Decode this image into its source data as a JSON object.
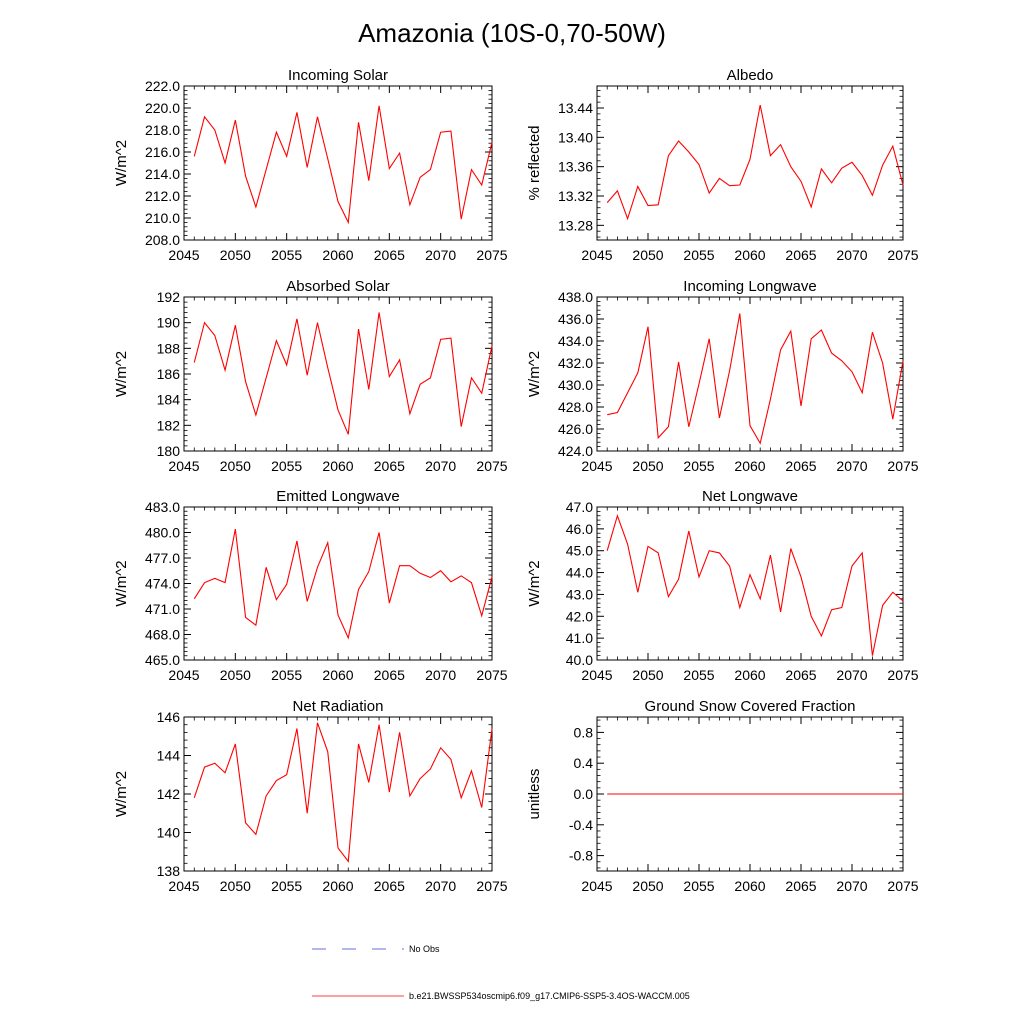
{
  "figure": {
    "title": "Amazonia (10S-0,70-50W)",
    "legend": [
      {
        "label": "No Obs",
        "color": "#3344cc",
        "style": "dashed"
      },
      {
        "label": "b.e21.BWSSP534oscmip6.f09_g17.CMIP6-SSP5-3.4OS-WACCM.005",
        "color": "#ff0000",
        "style": "solid"
      }
    ]
  },
  "chart_data": [
    {
      "id": "incoming-solar",
      "type": "line",
      "title": "Incoming Solar",
      "ylabel": "W/m^2",
      "xlim": [
        2045,
        2075
      ],
      "ylim": [
        208,
        222
      ],
      "xticks": [
        2045,
        2050,
        2055,
        2060,
        2065,
        2070,
        2075
      ],
      "xtick_labels": [
        "2045",
        "2050",
        "2055",
        "2060",
        "2065",
        "2070",
        "2075"
      ],
      "yticks": [
        208,
        210,
        212,
        214,
        216,
        218,
        220,
        222
      ],
      "ytick_labels": [
        "208.0",
        "210.0",
        "212.0",
        "214.0",
        "216.0",
        "218.0",
        "220.0",
        "222.0"
      ],
      "yminor": 4,
      "color": "#ff0000",
      "x": [
        2046,
        2047,
        2048,
        2049,
        2050,
        2051,
        2052,
        2053,
        2054,
        2055,
        2056,
        2057,
        2058,
        2059,
        2060,
        2061,
        2062,
        2063,
        2064,
        2065,
        2066,
        2067,
        2068,
        2069,
        2070,
        2071,
        2072,
        2073,
        2074,
        2075
      ],
      "values": [
        215.6,
        219.2,
        218.0,
        215.0,
        218.9,
        213.8,
        211.0,
        214.4,
        217.8,
        215.6,
        219.6,
        214.6,
        219.2,
        215.4,
        211.5,
        209.6,
        218.7,
        213.4,
        220.2,
        214.5,
        215.9,
        211.2,
        213.7,
        214.4,
        217.8,
        217.9,
        209.9,
        214.4,
        213.0,
        216.9
      ]
    },
    {
      "id": "albedo",
      "type": "line",
      "title": "Albedo",
      "ylabel": "% reflected",
      "xlim": [
        2045,
        2075
      ],
      "ylim": [
        13.26,
        13.47
      ],
      "xticks": [
        2045,
        2050,
        2055,
        2060,
        2065,
        2070,
        2075
      ],
      "xtick_labels": [
        "2045",
        "2050",
        "2055",
        "2060",
        "2065",
        "2070",
        "2075"
      ],
      "yticks": [
        13.28,
        13.32,
        13.36,
        13.4,
        13.44
      ],
      "ytick_labels": [
        "13.28",
        "13.32",
        "13.36",
        "13.40",
        "13.44"
      ],
      "yminor": 4,
      "color": "#ff0000",
      "x": [
        2046,
        2047,
        2048,
        2049,
        2050,
        2051,
        2052,
        2053,
        2054,
        2055,
        2056,
        2057,
        2058,
        2059,
        2060,
        2061,
        2062,
        2063,
        2064,
        2065,
        2066,
        2067,
        2068,
        2069,
        2070,
        2071,
        2072,
        2073,
        2074,
        2075
      ],
      "values": [
        13.311,
        13.327,
        13.289,
        13.333,
        13.307,
        13.308,
        13.375,
        13.395,
        13.38,
        13.363,
        13.324,
        13.344,
        13.334,
        13.335,
        13.37,
        13.444,
        13.375,
        13.39,
        13.36,
        13.34,
        13.305,
        13.357,
        13.338,
        13.358,
        13.366,
        13.348,
        13.321,
        13.362,
        13.388,
        13.335
      ]
    },
    {
      "id": "absorbed-solar",
      "type": "line",
      "title": "Absorbed Solar",
      "ylabel": "W/m^2",
      "xlim": [
        2045,
        2075
      ],
      "ylim": [
        180,
        192
      ],
      "xticks": [
        2045,
        2050,
        2055,
        2060,
        2065,
        2070,
        2075
      ],
      "xtick_labels": [
        "2045",
        "2050",
        "2055",
        "2060",
        "2065",
        "2070",
        "2075"
      ],
      "yticks": [
        180,
        182,
        184,
        186,
        188,
        190,
        192
      ],
      "ytick_labels": [
        "180",
        "182",
        "184",
        "186",
        "188",
        "190",
        "192"
      ],
      "yminor": 4,
      "color": "#ff0000",
      "x": [
        2046,
        2047,
        2048,
        2049,
        2050,
        2051,
        2052,
        2053,
        2054,
        2055,
        2056,
        2057,
        2058,
        2059,
        2060,
        2061,
        2062,
        2063,
        2064,
        2065,
        2066,
        2067,
        2068,
        2069,
        2070,
        2071,
        2072,
        2073,
        2074,
        2075
      ],
      "values": [
        186.9,
        190.0,
        189.0,
        186.3,
        189.8,
        185.4,
        182.8,
        185.7,
        188.6,
        186.7,
        190.3,
        185.9,
        190.0,
        186.5,
        183.2,
        181.3,
        189.5,
        184.8,
        190.8,
        185.8,
        187.1,
        182.9,
        185.2,
        185.7,
        188.7,
        188.8,
        181.9,
        185.7,
        184.5,
        188.2
      ]
    },
    {
      "id": "incoming-longwave",
      "type": "line",
      "title": "Incoming Longwave",
      "ylabel": "W/m^2",
      "xlim": [
        2045,
        2075
      ],
      "ylim": [
        424,
        438
      ],
      "xticks": [
        2045,
        2050,
        2055,
        2060,
        2065,
        2070,
        2075
      ],
      "xtick_labels": [
        "2045",
        "2050",
        "2055",
        "2060",
        "2065",
        "2070",
        "2075"
      ],
      "yticks": [
        424,
        426,
        428,
        430,
        432,
        434,
        436,
        438
      ],
      "ytick_labels": [
        "424.0",
        "426.0",
        "428.0",
        "430.0",
        "432.0",
        "434.0",
        "436.0",
        "438.0"
      ],
      "yminor": 4,
      "color": "#ff0000",
      "x": [
        2046,
        2047,
        2048,
        2049,
        2050,
        2051,
        2052,
        2053,
        2054,
        2055,
        2056,
        2057,
        2058,
        2059,
        2060,
        2061,
        2062,
        2063,
        2064,
        2065,
        2066,
        2067,
        2068,
        2069,
        2070,
        2071,
        2072,
        2073,
        2074,
        2075
      ],
      "values": [
        427.3,
        427.5,
        429.3,
        431.1,
        435.3,
        425.2,
        426.2,
        432.1,
        426.2,
        430.1,
        434.2,
        427.0,
        431.3,
        436.5,
        426.3,
        424.7,
        428.7,
        433.2,
        434.9,
        428.1,
        434.2,
        435.0,
        432.9,
        432.2,
        431.2,
        429.3,
        434.8,
        432.0,
        426.9,
        432.2
      ]
    },
    {
      "id": "emitted-longwave",
      "type": "line",
      "title": "Emitted Longwave",
      "ylabel": "W/m^2",
      "xlim": [
        2045,
        2075
      ],
      "ylim": [
        465,
        483
      ],
      "xticks": [
        2045,
        2050,
        2055,
        2060,
        2065,
        2070,
        2075
      ],
      "xtick_labels": [
        "2045",
        "2050",
        "2055",
        "2060",
        "2065",
        "2070",
        "2075"
      ],
      "yticks": [
        465,
        468,
        471,
        474,
        477,
        480,
        483
      ],
      "ytick_labels": [
        "465.0",
        "468.0",
        "471.0",
        "474.0",
        "477.0",
        "480.0",
        "483.0"
      ],
      "yminor": 5,
      "color": "#ff0000",
      "x": [
        2046,
        2047,
        2048,
        2049,
        2050,
        2051,
        2052,
        2053,
        2054,
        2055,
        2056,
        2057,
        2058,
        2059,
        2060,
        2061,
        2062,
        2063,
        2064,
        2065,
        2066,
        2067,
        2068,
        2069,
        2070,
        2071,
        2072,
        2073,
        2074,
        2075
      ],
      "values": [
        472.2,
        474.1,
        474.6,
        474.1,
        480.4,
        470.0,
        469.1,
        475.9,
        472.1,
        473.9,
        479.0,
        471.9,
        475.9,
        478.8,
        470.3,
        467.6,
        473.3,
        475.4,
        480.0,
        471.7,
        476.1,
        476.1,
        475.2,
        474.7,
        475.5,
        474.2,
        474.9,
        474.1,
        470.2,
        474.8
      ]
    },
    {
      "id": "net-longwave",
      "type": "line",
      "title": "Net Longwave",
      "ylabel": "W/m^2",
      "xlim": [
        2045,
        2075
      ],
      "ylim": [
        40,
        47
      ],
      "xticks": [
        2045,
        2050,
        2055,
        2060,
        2065,
        2070,
        2075
      ],
      "xtick_labels": [
        "2045",
        "2050",
        "2055",
        "2060",
        "2065",
        "2070",
        "2075"
      ],
      "yticks": [
        40,
        41,
        42,
        43,
        44,
        45,
        46,
        47
      ],
      "ytick_labels": [
        "40.0",
        "41.0",
        "42.0",
        "43.0",
        "44.0",
        "45.0",
        "46.0",
        "47.0"
      ],
      "yminor": 4,
      "color": "#ff0000",
      "x": [
        2046,
        2047,
        2048,
        2049,
        2050,
        2051,
        2052,
        2053,
        2054,
        2055,
        2056,
        2057,
        2058,
        2059,
        2060,
        2061,
        2062,
        2063,
        2064,
        2065,
        2066,
        2067,
        2068,
        2069,
        2070,
        2071,
        2072,
        2073,
        2074,
        2075
      ],
      "values": [
        45.0,
        46.6,
        45.3,
        43.1,
        45.2,
        44.9,
        42.9,
        43.7,
        45.9,
        43.8,
        45.0,
        44.9,
        44.3,
        42.4,
        43.9,
        42.8,
        44.8,
        42.2,
        45.1,
        43.8,
        42.0,
        41.1,
        42.3,
        42.4,
        44.3,
        44.9,
        40.2,
        42.5,
        43.1,
        42.7
      ]
    },
    {
      "id": "net-radiation",
      "type": "line",
      "title": "Net Radiation",
      "ylabel": "W/m^2",
      "xlim": [
        2045,
        2075
      ],
      "ylim": [
        138,
        146
      ],
      "xticks": [
        2045,
        2050,
        2055,
        2060,
        2065,
        2070,
        2075
      ],
      "xtick_labels": [
        "2045",
        "2050",
        "2055",
        "2060",
        "2065",
        "2070",
        "2075"
      ],
      "yticks": [
        138,
        140,
        142,
        144,
        146
      ],
      "ytick_labels": [
        "138",
        "140",
        "142",
        "144",
        "146"
      ],
      "yminor": 4,
      "color": "#ff0000",
      "x": [
        2046,
        2047,
        2048,
        2049,
        2050,
        2051,
        2052,
        2053,
        2054,
        2055,
        2056,
        2057,
        2058,
        2059,
        2060,
        2061,
        2062,
        2063,
        2064,
        2065,
        2066,
        2067,
        2068,
        2069,
        2070,
        2071,
        2072,
        2073,
        2074,
        2075
      ],
      "values": [
        141.8,
        143.4,
        143.6,
        143.1,
        144.6,
        140.5,
        139.9,
        141.9,
        142.7,
        143.0,
        145.4,
        141.0,
        145.7,
        144.2,
        139.2,
        138.5,
        144.6,
        142.6,
        145.6,
        142.1,
        145.2,
        141.9,
        142.8,
        143.3,
        144.4,
        143.8,
        141.8,
        143.2,
        141.3,
        145.4
      ]
    },
    {
      "id": "ground-snow",
      "type": "line",
      "title": "Ground Snow Covered Fraction",
      "ylabel": "unitless",
      "xlim": [
        2045,
        2075
      ],
      "ylim": [
        -1.0,
        1.0
      ],
      "xticks": [
        2045,
        2050,
        2055,
        2060,
        2065,
        2070,
        2075
      ],
      "xtick_labels": [
        "2045",
        "2050",
        "2055",
        "2060",
        "2065",
        "2070",
        "2075"
      ],
      "yticks": [
        -0.8,
        -0.4,
        0.0,
        0.4,
        0.8
      ],
      "ytick_labels": [
        "-0.8",
        "-0.4",
        "0.0",
        "0.4",
        "0.8"
      ],
      "yminor": 4,
      "color": "#ff0000",
      "x": [
        2046,
        2047,
        2048,
        2049,
        2050,
        2051,
        2052,
        2053,
        2054,
        2055,
        2056,
        2057,
        2058,
        2059,
        2060,
        2061,
        2062,
        2063,
        2064,
        2065,
        2066,
        2067,
        2068,
        2069,
        2070,
        2071,
        2072,
        2073,
        2074,
        2075
      ],
      "values": [
        0,
        0,
        0,
        0,
        0,
        0,
        0,
        0,
        0,
        0,
        0,
        0,
        0,
        0,
        0,
        0,
        0,
        0,
        0,
        0,
        0,
        0,
        0,
        0,
        0,
        0,
        0,
        0,
        0,
        0
      ]
    }
  ]
}
